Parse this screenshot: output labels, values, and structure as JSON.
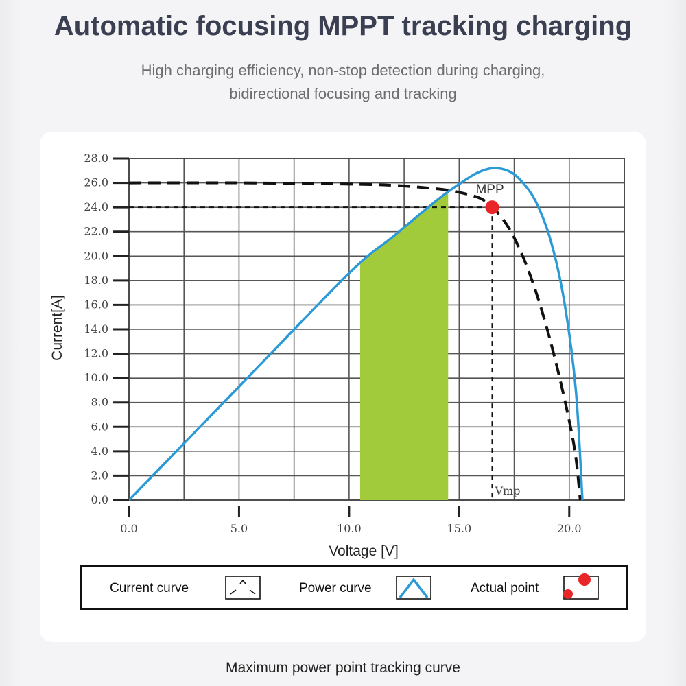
{
  "header": {
    "title": "Automatic focusing MPPT tracking charging",
    "subtitle": "High charging efficiency, non-stop detection during charging, bidirectional focusing and tracking"
  },
  "caption": "Maximum power point tracking curve",
  "chart_data": {
    "type": "line",
    "xlabel": "Voltage [V]",
    "ylabel": "Current[A]",
    "xlim": [
      0,
      22.5
    ],
    "ylim": [
      0,
      28
    ],
    "x_ticks": [
      "0.0",
      "5.0",
      "10.0",
      "15.0",
      "20.0"
    ],
    "y_ticks": [
      "0.0",
      "2.0",
      "4.0",
      "6.0",
      "8.0",
      "10.0",
      "12.0",
      "14.0",
      "16.0",
      "18.0",
      "20.0",
      "22.0",
      "24.0",
      "26.0",
      "28.0"
    ],
    "grid": true,
    "series": [
      {
        "name": "Current curve",
        "style": "dashed",
        "color": "#111111",
        "x": [
          0,
          5,
          10,
          12,
          13.5,
          14.5,
          15.3,
          16,
          16.5,
          17,
          17.5,
          18,
          18.5,
          19,
          19.5,
          20,
          20.3,
          20.5
        ],
        "y": [
          26.0,
          26.0,
          25.9,
          25.8,
          25.6,
          25.4,
          25.1,
          24.7,
          24.0,
          23.0,
          21.5,
          19.5,
          17.0,
          14.0,
          10.5,
          6.5,
          3.5,
          0
        ]
      },
      {
        "name": "Power curve",
        "style": "solid",
        "color": "#2b9ad6",
        "x": [
          0,
          5,
          10,
          12,
          14,
          15,
          15.8,
          16.5,
          17.2,
          17.8,
          18.5,
          19.2,
          19.8,
          20.3,
          20.6
        ],
        "y": [
          0,
          9.3,
          18.6,
          21.6,
          24.6,
          25.9,
          26.8,
          27.2,
          27.0,
          26.2,
          24.4,
          21.0,
          16.0,
          9.0,
          0
        ]
      }
    ],
    "shaded_region": {
      "x_from": 10.5,
      "x_to": 14.5,
      "color": "#a2cb3b"
    },
    "mpp": {
      "label": "MPP",
      "x": 16.5,
      "y": 24.0,
      "color": "#e8262a"
    },
    "reference_lines": {
      "current_at_isc": 26.0,
      "current_at_mpp": 24.0,
      "vmp_label": "Vmp"
    },
    "legend": {
      "placement": "bottom",
      "items": [
        {
          "label": "Current curve",
          "icon": "current-curve-icon"
        },
        {
          "label": "Power curve",
          "icon": "power-curve-icon"
        },
        {
          "label": "Actual point",
          "icon": "actual-point-icon"
        }
      ]
    }
  }
}
